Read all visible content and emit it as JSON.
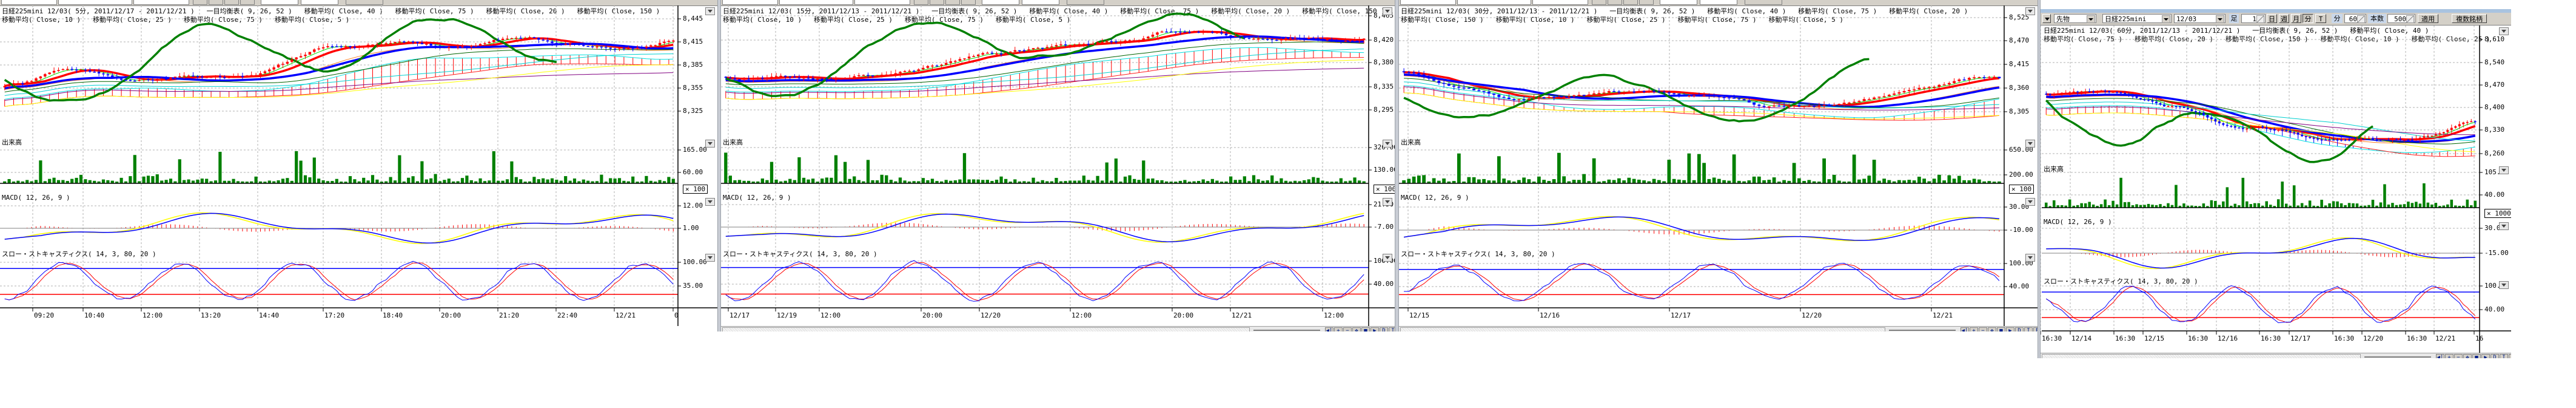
{
  "colors": {
    "up": "#ff0000",
    "down": "#0000ff",
    "volume": "#008000",
    "lagging": "#008000",
    "macd": "#0000ff",
    "signal": "#ffff00",
    "histogram": "#ff0000",
    "stoch_k": "#0000ff",
    "stoch_d": "#ff0000",
    "grid": "#b0b0b0",
    "toolbar": "#d4d0c8"
  },
  "toolbar": {
    "menu_icon": "chevron-down-icon",
    "market": "先物",
    "symbol": "日経225mini",
    "contract": "12/03",
    "bar_label": "足",
    "bar_count": "1",
    "day": "日",
    "week": "週",
    "month": "月",
    "minute": "分",
    "tick": "T",
    "minute_label": "分",
    "minute_value": "60",
    "count_label": "本数",
    "count_value": "500",
    "apply": "適用",
    "multi_symbol": "複数銘柄"
  },
  "nav_buttons": [
    "◀|",
    "+",
    "−",
    "✥",
    "■",
    "▶",
    "D",
    "I",
    "R",
    "⊕",
    "X"
  ],
  "panels": [
    {
      "header": [
        "日経225mini 12/03( 5分, 2011/12/17 - 2011/12/21 )   一目均衡表( 9, 26, 52 )   移動平均( Close, 40 )   移動平均( Close, 75 )   移動平均( Close, 20 )   移動平均( Close, 150 )",
        "移動平均( Close, 10 )   移動平均( Close, 25 )   移動平均( Close, 75 )   移動平均( Close, 5 )"
      ],
      "price_axis": [
        "8,445",
        "8,415",
        "8,385",
        "8,355",
        "8,325"
      ],
      "volume_label": "出来高",
      "volume_axis": [
        "165.00",
        "60.00"
      ],
      "multiplier": "× 100",
      "macd_label": "MACD( 12, 26, 9 )",
      "macd_axis": [
        "12.00",
        "1.00"
      ],
      "stoch_label": "スロー・ストキャスティクス( 14, 3, 80, 20 )",
      "stoch_axis": [
        "100.00",
        "35.00"
      ],
      "x_labels": [
        "09:20",
        "10:40",
        "12:00",
        "13:20",
        "14:40",
        "17:20",
        "18:40",
        "20:00",
        "21:20",
        "22:40",
        "12/21",
        "0"
      ]
    },
    {
      "header": [
        "日経225mini 12/03( 15分, 2011/12/13 - 2011/12/21 )   一目均衡表( 9, 26, 52 )   移動平均( Close, 40 )   移動平均( Close, 75 )   移動平均( Close, 20 )   移動平均( Close, 150 )",
        "移動平均( Close, 10 )   移動平均( Close, 25 )   移動平均( Close, 75 )   移動平均( Close, 5 )"
      ],
      "price_axis": [
        "8,465",
        "8,420",
        "8,380",
        "8,335",
        "8,295"
      ],
      "volume_label": "出来高",
      "volume_axis": [
        "320.00",
        "130.00"
      ],
      "multiplier": "× 100",
      "macd_label": "MACD( 12, 26, 9 )",
      "macd_axis": [
        "21.50",
        "-7.00"
      ],
      "stoch_label": "スロー・ストキャスティクス( 14, 3, 80, 20 )",
      "stoch_axis": [
        "100.00",
        "40.00"
      ],
      "x_labels": [
        "12/17",
        "12/19",
        "12:00",
        "20:00",
        "12/20",
        "12:00",
        "20:00",
        "12/21",
        "12:00"
      ]
    },
    {
      "header": [
        "日経225mini 12/03( 30分, 2011/12/13 - 2011/12/21 )   一目均衡表( 9, 26, 52 )   移動平均( Close, 40 )   移動平均( Close, 75 )   移動平均( Close, 20 )",
        "移動平均( Close, 150 )   移動平均( Close, 10 )   移動平均( Close, 25 )   移動平均( Close, 75 )   移動平均( Close, 5 )"
      ],
      "price_axis": [
        "8,525",
        "8,470",
        "8,415",
        "8,360",
        "8,305"
      ],
      "volume_label": "出来高",
      "volume_axis": [
        "650.00",
        "200.00"
      ],
      "multiplier": "× 100",
      "macd_label": "MACD( 12, 26, 9 )",
      "macd_axis": [
        "30.00",
        "-10.00"
      ],
      "stoch_label": "スロー・ストキャスティクス( 14, 3, 80, 20 )",
      "stoch_axis": [
        "100.00",
        "40.00"
      ],
      "x_labels": [
        "12/15",
        "12/16",
        "12/17",
        "12/20",
        "12/21"
      ]
    },
    {
      "header": [
        "日経225mini 12/03( 60分, 2011/12/13 - 2011/12/21 )   一目均衡表( 9, 26, 52 )   移動平均( Close, 40 )",
        "移動平均( Close, 75 )   移動平均( Close, 20 )   移動平均( Close, 150 )   移動平均( Close, 10 )   移動平均( Close, 25 )"
      ],
      "price_axis": [
        "8,610",
        "8,540",
        "8,470",
        "8,400",
        "8,330",
        "8,260"
      ],
      "volume_label": "出来高",
      "volume_axis": [
        "105.00",
        "40.00"
      ],
      "multiplier": "× 1000",
      "macd_label": "MACD( 12, 26, 9 )",
      "macd_axis": [
        "30.00",
        "-15.00"
      ],
      "stoch_label": "スロー・ストキャスティクス( 14, 3, 80, 20 )",
      "stoch_axis": [
        "100.00",
        "40.00"
      ],
      "x_labels": [
        "16:30",
        "12/14",
        "16:30",
        "12/15",
        "16:30",
        "12/16",
        "16:30",
        "12/17",
        "16:30",
        "12/20",
        "16:30",
        "12/21",
        "16"
      ]
    }
  ]
}
